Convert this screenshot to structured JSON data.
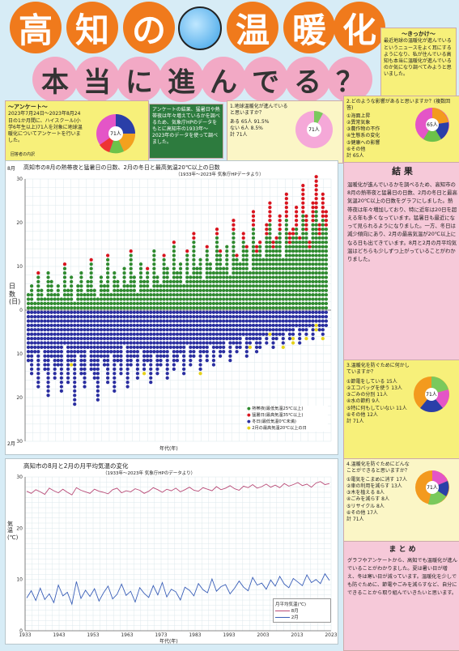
{
  "title": {
    "line1": [
      "高",
      "知",
      "の",
      "温",
      "暖",
      "化"
    ],
    "line2": [
      "本",
      "当",
      "に",
      "進",
      "ん",
      "で",
      "る",
      "？"
    ]
  },
  "trigger": {
    "heading": "〜きっかけ〜",
    "text": "最近地球の温暖化が進んでいるというニュースをよく耳にするようになり、私が住んでいる高知も本当に温暖化が進んでいるのか気になり調べてみようと思いました。"
  },
  "survey_box": {
    "heading": "〜アンケート〜",
    "text": "2023年7月24日〜2023年8月24日の1か月間に、ハイスクール(小学6年生以上)71人を対象に地球温暖化についてアンケートを行いました。",
    "center": "71人",
    "note": "回答者の内訳"
  },
  "survey_intro": {
    "text": "アンケートの結果、猛暑日や熱帯夜は年々増えているかを調べるため、気象庁HPのデータをもとに高知市の1933年〜2023年のデータを使って調べました。"
  },
  "q1": {
    "title": "1.地球温暖化が進んでいると思いますか？",
    "rows": [
      "ある 65人 91.5%",
      "ない 6人 8.5%",
      "計 71人"
    ],
    "center": "71人"
  },
  "q2": {
    "title": "2.どのような影響があると思いますか？(複数回答)",
    "rows": [
      "①海面上昇",
      "②異常気象",
      "③農作物の不作",
      "④生態系の変化",
      "⑤健康への影響",
      "⑥その他"
    ],
    "total": "計 65人",
    "center": "65人"
  },
  "chart1": {
    "title": "高知市の8月の熱帯夜と猛暑日の日数、2月の冬日と最高気温20℃以上の日数",
    "subtitle": "（1933年〜2023年 気象庁HPデータより）",
    "ylabel_upper": "8月",
    "ylabel_lower": "2月",
    "ylabel_mid": "日数(日)",
    "xlabel": "年代(年)",
    "yticks": [
      "30",
      "20",
      "10",
      "0",
      "10",
      "20",
      "30"
    ],
    "legend": [
      "熱帯夜(最低気温25℃以上)",
      "猛暑日(最高気温35℃以上)",
      "冬日(最低気温0℃未満)",
      "2月の最高気温20℃以上の日"
    ]
  },
  "chart_data": [
    {
      "type": "bar",
      "title": "高知市の8月の熱帯夜と猛暑日の日数、2月の冬日と最高気温20℃以上の日数",
      "xlabel": "年代(年)",
      "ylabel": "日数(日)",
      "ylim": [
        -30,
        30
      ],
      "colors": {
        "tropical_night": "#2f8a2f",
        "extreme_heat": "#d9141e",
        "winter_day": "#2a2ea0",
        "warm_feb": "#e6d21a"
      },
      "series": [
        {
          "name": "熱帯夜(最低気温25℃以上)",
          "values": [
            4,
            6,
            2,
            8,
            5,
            3,
            9,
            7,
            4,
            6,
            3,
            10,
            5,
            8,
            2,
            6,
            9,
            4,
            7,
            11,
            5,
            3,
            8,
            6,
            12,
            4,
            9,
            7,
            5,
            10,
            6,
            13,
            8,
            4,
            11,
            7,
            9,
            5,
            14,
            8,
            6,
            12,
            10,
            7,
            15,
            9,
            11,
            6,
            13,
            8,
            16,
            10,
            12,
            7,
            14,
            11,
            9,
            17,
            13,
            10,
            15,
            8,
            18,
            12,
            11,
            16,
            14,
            9,
            19,
            13,
            15,
            12,
            17,
            20,
            14,
            16,
            18,
            12,
            21,
            15,
            17,
            19,
            16,
            22,
            18,
            14,
            20,
            23,
            17,
            21,
            19
          ]
        },
        {
          "name": "猛暑日(最高気温35℃以上)",
          "values": [
            0,
            0,
            0,
            1,
            0,
            0,
            0,
            0,
            0,
            0,
            0,
            1,
            0,
            0,
            0,
            0,
            0,
            0,
            0,
            1,
            0,
            0,
            0,
            0,
            1,
            0,
            0,
            0,
            0,
            0,
            0,
            1,
            0,
            0,
            0,
            0,
            1,
            0,
            0,
            0,
            0,
            1,
            0,
            0,
            1,
            0,
            0,
            0,
            1,
            0,
            2,
            0,
            0,
            0,
            1,
            0,
            0,
            2,
            1,
            0,
            0,
            0,
            3,
            1,
            0,
            2,
            1,
            0,
            4,
            2,
            1,
            0,
            3,
            5,
            2,
            1,
            4,
            0,
            6,
            3,
            2,
            5,
            1,
            7,
            4,
            2,
            5,
            8,
            3,
            6,
            4
          ]
        },
        {
          "name": "冬日(最低気温0℃未満)",
          "values": [
            -12,
            -15,
            -10,
            -18,
            -9,
            -14,
            -20,
            -11,
            -16,
            -13,
            -19,
            -8,
            -17,
            -12,
            -22,
            -10,
            -15,
            -18,
            -9,
            -14,
            -16,
            -21,
            -11,
            -13,
            -17,
            -10,
            -19,
            -12,
            -15,
            -8,
            -18,
            -13,
            -11,
            -16,
            -9,
            -14,
            -12,
            -17,
            -10,
            -15,
            -13,
            -11,
            -16,
            -9,
            -14,
            -12,
            -10,
            -15,
            -8,
            -13,
            -11,
            -9,
            -14,
            -10,
            -12,
            -8,
            -13,
            -9,
            -11,
            -10,
            -7,
            -12,
            -8,
            -10,
            -9,
            -6,
            -11,
            -8,
            -7,
            -10,
            -9,
            -6,
            -8,
            -5,
            -9,
            -7,
            -6,
            -8,
            -5,
            -7,
            -6,
            -4,
            -8,
            -5,
            -6,
            -4,
            -7,
            -3,
            -5,
            -6,
            -4
          ]
        },
        {
          "name": "2月の最高気温20℃以上の日",
          "values": [
            0,
            0,
            0,
            0,
            0,
            0,
            0,
            0,
            0,
            0,
            0,
            0,
            0,
            -1,
            0,
            0,
            0,
            0,
            0,
            0,
            0,
            0,
            0,
            0,
            0,
            0,
            0,
            0,
            0,
            0,
            0,
            0,
            0,
            0,
            0,
            -1,
            0,
            0,
            0,
            0,
            0,
            0,
            0,
            0,
            0,
            0,
            0,
            0,
            0,
            0,
            0,
            0,
            -1,
            0,
            0,
            0,
            0,
            0,
            0,
            0,
            0,
            0,
            0,
            0,
            0,
            0,
            0,
            -1,
            0,
            0,
            0,
            0,
            0,
            -1,
            0,
            0,
            0,
            -1,
            0,
            0,
            -2,
            0,
            0,
            0,
            -1,
            0,
            0,
            -2,
            0,
            -1,
            0
          ]
        }
      ]
    },
    {
      "type": "line",
      "title": "高知市の8月と2月の月平均気温の変化",
      "subtitle": "（1933年〜2023年 気象庁HPのデータより）",
      "xlabel": "年代(年)",
      "ylabel": "気温(℃)",
      "ylim": [
        0,
        30
      ],
      "series": [
        {
          "name": "8月",
          "color": "#b84a76",
          "values": [
            27.2,
            26.8,
            27.5,
            27.1,
            26.6,
            27.8,
            27.3,
            26.9,
            27.6,
            27.0,
            26.5,
            27.9,
            27.4,
            27.1,
            26.8,
            27.6,
            27.2,
            27.0,
            26.7,
            27.5,
            27.8,
            26.9,
            27.3,
            27.1,
            27.7,
            27.4,
            26.8,
            27.2,
            27.9,
            27.5,
            27.0,
            27.6,
            27.3,
            27.8,
            27.1,
            27.5,
            28.0,
            27.4,
            27.2,
            27.9,
            27.6,
            27.3,
            28.1,
            27.5,
            27.8,
            28.3,
            27.7,
            27.4,
            28.2,
            27.9,
            28.5,
            27.8,
            28.1,
            28.6,
            28.0,
            28.4,
            27.9,
            28.7,
            28.2,
            28.5,
            28.9,
            28.3,
            28.6,
            28.0,
            28.8,
            29.1,
            28.5,
            28.7
          ]
        },
        {
          "name": "2月",
          "color": "#3a5fb8",
          "values": [
            6.4,
            7.8,
            5.9,
            8.3,
            6.1,
            7.2,
            5.5,
            8.9,
            6.8,
            7.5,
            5.2,
            9.6,
            6.3,
            7.9,
            6.7,
            8.2,
            5.8,
            7.4,
            8.7,
            6.2,
            7.1,
            9.1,
            6.9,
            7.7,
            5.6,
            8.4,
            7.3,
            6.5,
            8.8,
            7.0,
            9.4,
            6.6,
            8.1,
            7.6,
            6.0,
            8.5,
            7.9,
            6.8,
            9.2,
            8.0,
            7.4,
            10.1,
            7.7,
            8.6,
            9.0,
            7.2,
            8.3,
            9.7,
            8.5,
            7.8,
            10.4,
            8.9,
            9.3,
            8.1,
            9.9,
            8.7,
            10.6,
            9.1,
            8.4,
            10.2,
            9.5,
            8.8,
            10.9,
            9.4,
            10.0,
            9.2,
            11.1,
            9.8
          ]
        }
      ]
    }
  ],
  "chart2": {
    "title": "高知市の8月と2月の月平均気温の変化",
    "subtitle": "（1933年〜2023年 気象庁HPのデータより）",
    "ylabel": "気温(℃)",
    "xlabel": "年代(年)",
    "yticks": [
      "30",
      "20",
      "10",
      "0"
    ],
    "xticks": [
      "1933",
      "1943",
      "1953",
      "1963",
      "1973",
      "1983",
      "1993",
      "2003",
      "2013",
      "2023"
    ],
    "legend_title": "月平均気温(℃)",
    "legend": [
      "8月",
      "2月"
    ]
  },
  "result": {
    "heading": "結 果",
    "text": "温暖化が進んでいるかを調べるため、高知市の8月の熱帯夜と猛暑日の日数、2月の冬日と最高気温20℃以上の日数をグラフにしました。熱帯夜は年々増加しており、特に近年は20日を超える年も多くなっています。猛暑日も最近になって見られるようになりました。一方、冬日は減少傾向にあり、2月の最高気温が20℃以上になる日も出てきています。8月と2月の月平均気温はどちらも少しずつ上がっていることがわかりました。"
  },
  "q3": {
    "title": "3.温暖化を防ぐために何かしていますか？",
    "rows": [
      "①節電をしている 15人",
      "②エコバッグを使う 13人",
      "③ごみの分別 11人",
      "④水の節約 9人",
      "⑤特に何もしていない 11人",
      "⑥その他 12人"
    ],
    "total": "計 71人",
    "center": "71人"
  },
  "q4": {
    "title": "4.温暖化を防ぐためにどんなことができると思いますか？",
    "rows": [
      "①電気をこまめに消す 17人",
      "②車の利用を減らす 13人",
      "③木を植える 8人",
      "④ごみを減らす 8人",
      "⑤リサイクル 8人",
      "⑥その他 17人"
    ],
    "total": "計 71人",
    "center": "71人"
  },
  "summary": {
    "heading": "ま と め",
    "text": "グラフやアンケートから、高知でも温暖化が進んでいることがわかりました。夏は暑い日が増え、冬は寒い日が減っています。温暖化を少しでも防ぐために、節電やごみを減らすなど、自分にできることから取り組んでいきたいと思います。"
  }
}
